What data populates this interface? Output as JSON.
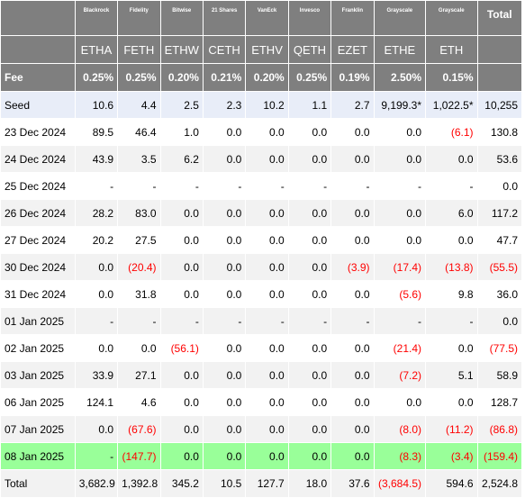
{
  "providers": [
    "Blackrock",
    "Fidelity",
    "Bitwise",
    "21 Shares",
    "VanEck",
    "Invesco",
    "Franklin",
    "Grayscale",
    "Grayscale"
  ],
  "total_header": "Total",
  "tickers": [
    "ETHA",
    "FETH",
    "ETHW",
    "CETH",
    "ETHV",
    "QETH",
    "EZET",
    "ETHE",
    "ETH"
  ],
  "fee_label": "Fee",
  "fees": [
    "0.25%",
    "0.25%",
    "0.20%",
    "0.21%",
    "0.20%",
    "0.25%",
    "0.19%",
    "2.50%",
    "0.15%"
  ],
  "rows": [
    {
      "label": "Seed",
      "cells": [
        "10.6",
        "4.4",
        "2.5",
        "2.3",
        "10.2",
        "1.1",
        "2.7",
        "9,199.3*",
        "1,022.5*",
        "10,255"
      ]
    },
    {
      "label": "23 Dec 2024",
      "cells": [
        "89.5",
        "46.4",
        "1.0",
        "0.0",
        "0.0",
        "0.0",
        "0.0",
        "0.0",
        "(6.1)",
        "130.8"
      ]
    },
    {
      "label": "24 Dec 2024",
      "cells": [
        "43.9",
        "3.5",
        "6.2",
        "0.0",
        "0.0",
        "0.0",
        "0.0",
        "0.0",
        "0.0",
        "53.6"
      ]
    },
    {
      "label": "25 Dec 2024",
      "cells": [
        "-",
        "-",
        "-",
        "-",
        "-",
        "-",
        "-",
        "-",
        "-",
        "0.0"
      ]
    },
    {
      "label": "26 Dec 2024",
      "cells": [
        "28.2",
        "83.0",
        "0.0",
        "0.0",
        "0.0",
        "0.0",
        "0.0",
        "0.0",
        "6.0",
        "117.2"
      ]
    },
    {
      "label": "27 Dec 2024",
      "cells": [
        "20.2",
        "27.5",
        "0.0",
        "0.0",
        "0.0",
        "0.0",
        "0.0",
        "0.0",
        "0.0",
        "47.7"
      ]
    },
    {
      "label": "30 Dec 2024",
      "cells": [
        "0.0",
        "(20.4)",
        "0.0",
        "0.0",
        "0.0",
        "0.0",
        "(3.9)",
        "(17.4)",
        "(13.8)",
        "(55.5)"
      ]
    },
    {
      "label": "31 Dec 2024",
      "cells": [
        "0.0",
        "31.8",
        "0.0",
        "0.0",
        "0.0",
        "0.0",
        "0.0",
        "(5.6)",
        "9.8",
        "36.0"
      ]
    },
    {
      "label": "01 Jan 2025",
      "cells": [
        "-",
        "-",
        "-",
        "-",
        "-",
        "-",
        "-",
        "-",
        "-",
        "0.0"
      ]
    },
    {
      "label": "02 Jan 2025",
      "cells": [
        "0.0",
        "0.0",
        "(56.1)",
        "0.0",
        "0.0",
        "0.0",
        "0.0",
        "(21.4)",
        "0.0",
        "(77.5)"
      ]
    },
    {
      "label": "03 Jan 2025",
      "cells": [
        "33.9",
        "27.1",
        "0.0",
        "0.0",
        "0.0",
        "0.0",
        "0.0",
        "(7.2)",
        "5.1",
        "58.9"
      ]
    },
    {
      "label": "06 Jan 2025",
      "cells": [
        "124.1",
        "4.6",
        "0.0",
        "0.0",
        "0.0",
        "0.0",
        "0.0",
        "0.0",
        "0.0",
        "128.7"
      ]
    },
    {
      "label": "07 Jan 2025",
      "cells": [
        "0.0",
        "(67.6)",
        "0.0",
        "0.0",
        "0.0",
        "0.0",
        "0.0",
        "(8.0)",
        "(11.2)",
        "(86.8)"
      ]
    },
    {
      "label": "08 Jan 2025",
      "cells": [
        "-",
        "(147.7)",
        "0.0",
        "0.0",
        "0.0",
        "0.0",
        "0.0",
        "(8.3)",
        "(3.4)",
        "(159.4)"
      ]
    }
  ],
  "total_row": {
    "label": "Total",
    "cells": [
      "3,682.9",
      "1,392.8",
      "345.2",
      "10.5",
      "127.7",
      "18.0",
      "37.6",
      "(3,684.5)",
      "594.6",
      "2,524.8"
    ]
  },
  "colors": {
    "header_bg": "#7f7f7f",
    "header_text": "#ffffff",
    "seed_bg": "#e8edf8",
    "alt_bg": "#f2f2f2",
    "highlight_bg": "#99ff99",
    "negative": "#ff0000"
  }
}
